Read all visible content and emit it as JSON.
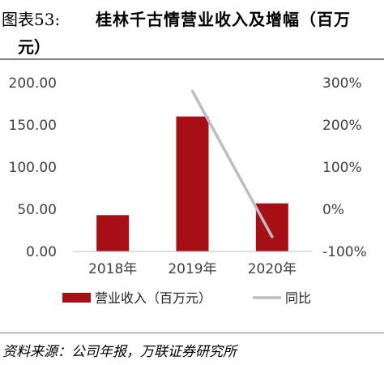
{
  "header": {
    "figure_label": "图表53:",
    "title_line1": "桂林千古情营业收入及增幅（百万",
    "title_line2": "元）"
  },
  "source": "资料来源：公司年报，万联证券研究所",
  "colors": {
    "bar": "#a50f15",
    "line": "#bdbdbd"
  },
  "chart_data": {
    "type": "bar",
    "categories": [
      "2018年",
      "2019年",
      "2020年"
    ],
    "series": [
      {
        "name": "营业收入（百万元）",
        "type": "bar",
        "axis": "left",
        "values": [
          43,
          160,
          57
        ]
      },
      {
        "name": "同比",
        "type": "line",
        "axis": "right",
        "values": [
          null,
          280,
          -65
        ]
      }
    ],
    "y_left": {
      "min": 0,
      "max": 200,
      "ticks": [
        0,
        50,
        100,
        150,
        200
      ],
      "tick_labels": [
        "0.00",
        "50.00",
        "100.00",
        "150.00",
        "200.00"
      ]
    },
    "y_right": {
      "min": -100,
      "max": 300,
      "ticks": [
        -100,
        0,
        100,
        200,
        300
      ],
      "tick_labels": [
        "-100%",
        "0%",
        "100%",
        "200%",
        "300%"
      ]
    },
    "grid": false,
    "legend_position": "bottom"
  }
}
